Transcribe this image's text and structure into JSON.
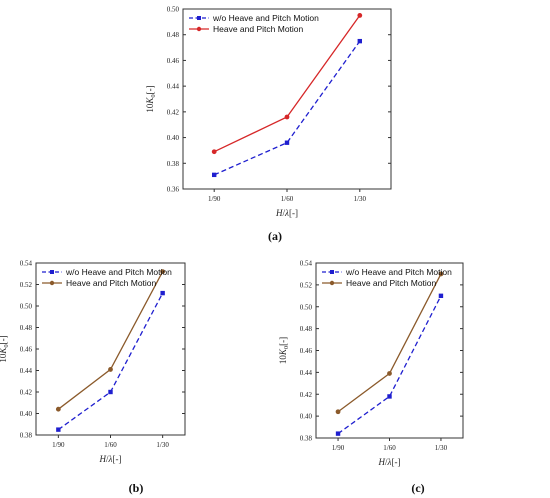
{
  "chart_data": [
    {
      "type": "line",
      "panel_label": "(a)",
      "categories": [
        "1/90",
        "1/60",
        "1/30"
      ],
      "xlabel": "H/λ[-]",
      "ylabel": "10K_0[-]",
      "ylim": [
        0.36,
        0.5
      ],
      "yticks": [
        "0.36",
        "0.38",
        "0.40",
        "0.42",
        "0.44",
        "0.46",
        "0.48",
        "0.50"
      ],
      "legend_position": "top-left",
      "series": [
        {
          "name": "w/o Heave and Pitch Motion",
          "values": [
            0.371,
            0.396,
            0.475
          ],
          "color": "#1f1fcf",
          "dash": "dashed",
          "marker": "square"
        },
        {
          "name": "Heave and Pitch Motion",
          "values": [
            0.389,
            0.416,
            0.495
          ],
          "color": "#d62728",
          "dash": "solid",
          "marker": "circle"
        }
      ]
    },
    {
      "type": "line",
      "panel_label": "(b)",
      "categories": [
        "1/90",
        "1/60",
        "1/30"
      ],
      "xlabel": "H/λ[-]",
      "ylabel": "10K_0[-]",
      "ylim": [
        0.38,
        0.54
      ],
      "yticks": [
        "0.38",
        "0.40",
        "0.42",
        "0.44",
        "0.46",
        "0.48",
        "0.50",
        "0.52",
        "0.54"
      ],
      "legend_position": "top-left",
      "series": [
        {
          "name": "w/o Heave and Pitch Motion",
          "values": [
            0.385,
            0.42,
            0.512
          ],
          "color": "#1f1fcf",
          "dash": "dashed",
          "marker": "square"
        },
        {
          "name": "Heave and Pitch Motion",
          "values": [
            0.404,
            0.441,
            0.532
          ],
          "color": "#8b5a2b",
          "dash": "solid",
          "marker": "circle"
        }
      ]
    },
    {
      "type": "line",
      "panel_label": "(c)",
      "categories": [
        "1/90",
        "1/60",
        "1/30"
      ],
      "xlabel": "H/λ[-]",
      "ylabel": "10K_0[-]",
      "ylim": [
        0.38,
        0.54
      ],
      "yticks": [
        "0.38",
        "0.40",
        "0.42",
        "0.44",
        "0.46",
        "0.48",
        "0.50",
        "0.52",
        "0.54"
      ],
      "legend_position": "top-left",
      "series": [
        {
          "name": "w/o Heave and Pitch Motion",
          "values": [
            0.384,
            0.418,
            0.51
          ],
          "color": "#1f1fcf",
          "dash": "dashed",
          "marker": "square"
        },
        {
          "name": "Heave and Pitch Motion",
          "values": [
            0.404,
            0.439,
            0.53
          ],
          "color": "#8b5a2b",
          "dash": "solid",
          "marker": "circle"
        }
      ]
    }
  ]
}
